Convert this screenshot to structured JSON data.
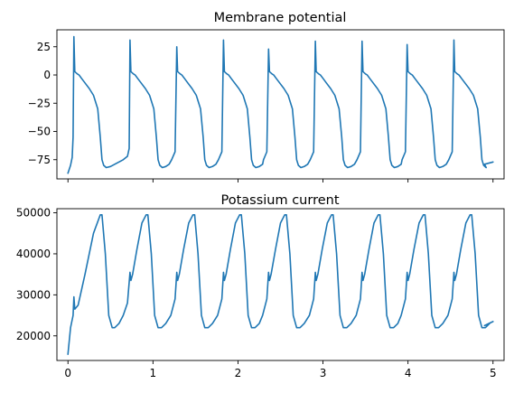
{
  "colors": {
    "series": "#1f77b4",
    "axes": "#000000",
    "background": "#ffffff"
  },
  "chart_data": [
    {
      "type": "line",
      "title": "Membrane potential",
      "xlabel": "",
      "ylabel": "",
      "xlim": [
        -0.13,
        5.13
      ],
      "ylim": [
        -92,
        40
      ],
      "xticks": [
        0,
        1,
        2,
        3,
        4,
        5
      ],
      "xtick_labels_shown": false,
      "yticks": [
        25,
        0,
        -25,
        -50,
        -75
      ],
      "ytick_labels": [
        "25",
        "0",
        "−25",
        "−50",
        "−75"
      ],
      "grid": false,
      "legend": "none",
      "spikes_t": [
        0.07,
        0.73,
        1.28,
        1.83,
        2.36,
        2.91,
        3.46,
        3.99,
        4.54
      ],
      "spike_peaks": [
        34,
        31,
        25,
        31,
        23,
        30,
        30,
        27,
        31
      ],
      "series": [
        {
          "x": [
            0,
            0.03,
            0.05,
            0.06,
            0.07,
            0.08,
            0.11,
            0.13,
            0.16,
            0.2,
            0.25,
            0.3,
            0.35,
            0.38,
            0.4,
            0.42,
            0.45,
            0.5,
            0.55,
            0.6,
            0.65,
            0.7,
            0.72,
            0.73
          ],
          "y": [
            -87,
            -80,
            -73,
            -55,
            34,
            3,
            1,
            0,
            -3,
            -7,
            -12,
            -18,
            -30,
            -55,
            -75,
            -80,
            -82,
            -81,
            -79,
            -77,
            -75,
            -72,
            -65,
            31
          ]
        }
      ]
    },
    {
      "type": "line",
      "title": "Potassium current",
      "xlabel": "",
      "ylabel": "",
      "xlim": [
        -0.13,
        5.13
      ],
      "ylim": [
        14000,
        51000
      ],
      "xticks": [
        0,
        1,
        2,
        3,
        4,
        5
      ],
      "xtick_labels": [
        "0",
        "1",
        "2",
        "3",
        "4",
        "5"
      ],
      "yticks": [
        50000,
        40000,
        30000,
        20000
      ],
      "ytick_labels": [
        "50000",
        "40000",
        "30000",
        "20000"
      ],
      "grid": false,
      "legend": "none",
      "series": [
        {
          "x": [
            0,
            0.03,
            0.06,
            0.07,
            0.08,
            0.12,
            0.2,
            0.3,
            0.38,
            0.4,
            0.44,
            0.48,
            0.52,
            0.55,
            0.6,
            0.65,
            0.7,
            0.73
          ],
          "y": [
            15500,
            22000,
            25000,
            29500,
            26500,
            27500,
            35000,
            45000,
            49500,
            49500,
            40000,
            25000,
            22000,
            22000,
            23000,
            25000,
            28000,
            35000
          ]
        }
      ]
    }
  ]
}
